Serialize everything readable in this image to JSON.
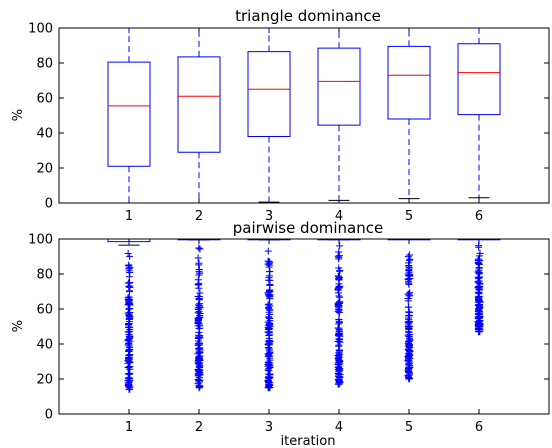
{
  "chart_data": [
    {
      "type": "box",
      "title": "triangle dominance",
      "xlabel": "",
      "ylabel": "%",
      "ylim": [
        0,
        100
      ],
      "yticks": [
        0,
        20,
        40,
        60,
        80,
        100
      ],
      "categories": [
        "1",
        "2",
        "3",
        "4",
        "5",
        "6"
      ],
      "box_color": "#0000ff",
      "median_color": "#ff0000",
      "boxes": [
        {
          "whisker_low": 0,
          "q1": 21,
          "median": 55.5,
          "q3": 80.5,
          "whisker_high": 100
        },
        {
          "whisker_low": 0,
          "q1": 29,
          "median": 61,
          "q3": 83.5,
          "whisker_high": 100
        },
        {
          "whisker_low": 0.5,
          "q1": 38,
          "median": 65,
          "q3": 86.5,
          "whisker_high": 100
        },
        {
          "whisker_low": 1.5,
          "q1": 44.5,
          "median": 69.5,
          "q3": 88.5,
          "whisker_high": 100
        },
        {
          "whisker_low": 2.5,
          "q1": 48,
          "median": 73,
          "q3": 89.5,
          "whisker_high": 100
        },
        {
          "whisker_low": 3,
          "q1": 50.5,
          "median": 74.5,
          "q3": 91,
          "whisker_high": 100
        }
      ]
    },
    {
      "type": "box",
      "title": "pairwise dominance",
      "xlabel": "iteration",
      "ylabel": "%",
      "ylim": [
        0,
        100
      ],
      "yticks": [
        0,
        20,
        40,
        60,
        80,
        100
      ],
      "categories": [
        "1",
        "2",
        "3",
        "4",
        "5",
        "6"
      ],
      "box_color": "#0000ff",
      "median_color": "#ff0000",
      "boxes": [
        {
          "whisker_low": 96.5,
          "q1": 98.5,
          "median": 100,
          "q3": 100,
          "whisker_high": 100,
          "outlier_range": [
            14,
            96
          ]
        },
        {
          "whisker_low": 99.5,
          "q1": 99.8,
          "median": 100,
          "q3": 100,
          "whisker_high": 100,
          "outlier_range": [
            15,
            99.5
          ]
        },
        {
          "whisker_low": 99.5,
          "q1": 99.8,
          "median": 100,
          "q3": 100,
          "whisker_high": 100,
          "outlier_range": [
            15,
            99.5
          ]
        },
        {
          "whisker_low": 99.6,
          "q1": 99.9,
          "median": 100,
          "q3": 100,
          "whisker_high": 100,
          "outlier_range": [
            17,
            99.6
          ]
        },
        {
          "whisker_low": 99.7,
          "q1": 99.9,
          "median": 100,
          "q3": 100,
          "whisker_high": 100,
          "outlier_range": [
            20,
            99.7
          ]
        },
        {
          "whisker_low": 99.8,
          "q1": 99.9,
          "median": 100,
          "q3": 100,
          "whisker_high": 100,
          "outlier_range": [
            47,
            99.8
          ]
        }
      ]
    }
  ]
}
